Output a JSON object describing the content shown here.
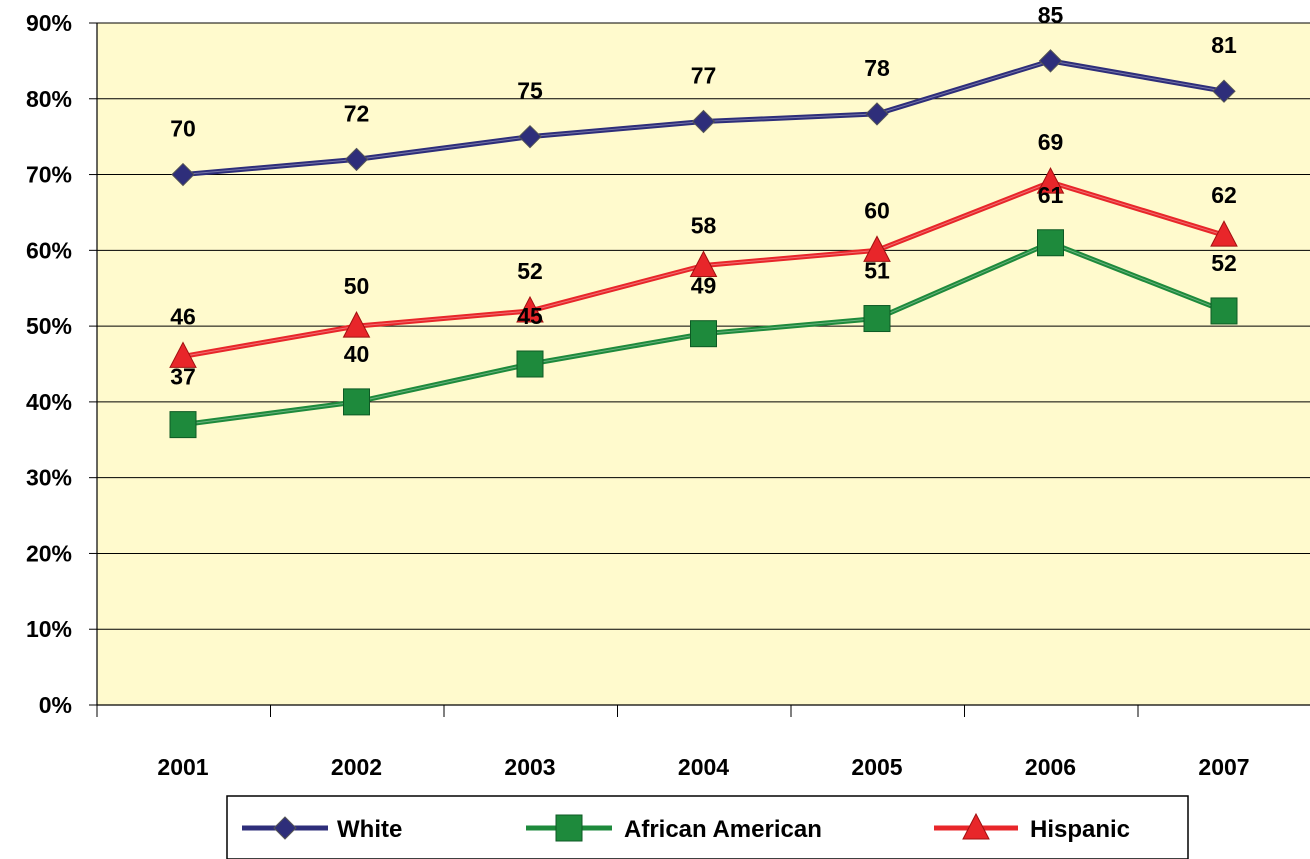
{
  "chart_data": {
    "type": "line",
    "title": "",
    "xlabel": "",
    "ylabel": "",
    "categories": [
      "2001",
      "2002",
      "2003",
      "2004",
      "2005",
      "2006",
      "2007"
    ],
    "ylim": [
      0,
      90
    ],
    "yticks": [
      "0%",
      "10%",
      "20%",
      "30%",
      "40%",
      "50%",
      "60%",
      "70%",
      "80%",
      "90%"
    ],
    "grid": true,
    "legend_position": "bottom",
    "plot_background": "#FFFACD",
    "series": [
      {
        "name": "White",
        "values": [
          70,
          72,
          75,
          77,
          78,
          85,
          81
        ],
        "color": "#2E2E7A",
        "marker": "diamond",
        "labels": [
          "70",
          "72",
          "75",
          "77",
          "78",
          "85",
          "81"
        ]
      },
      {
        "name": "African American",
        "values": [
          37,
          40,
          45,
          49,
          51,
          61,
          52
        ],
        "color": "#1E8A3C",
        "marker": "square",
        "labels": [
          "37",
          "40",
          "45",
          "49",
          "51",
          "61",
          "52"
        ]
      },
      {
        "name": "Hispanic",
        "values": [
          46,
          50,
          52,
          58,
          60,
          69,
          62
        ],
        "color": "#E8262A",
        "marker": "triangle",
        "labels": [
          "46",
          "50",
          "52",
          "58",
          "60",
          "69",
          "62"
        ]
      }
    ]
  }
}
